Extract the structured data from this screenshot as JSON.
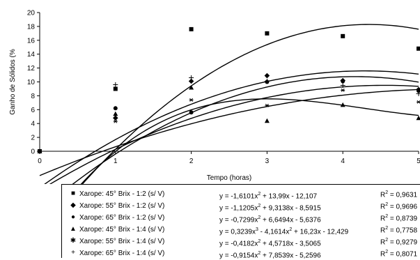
{
  "chart_data": {
    "type": "scatter",
    "xlabel": "Tempo (horas)",
    "ylabel": "Ganho de Sólidos (%",
    "xlim": [
      0,
      5
    ],
    "ylim": [
      0,
      20
    ],
    "x_ticks": [
      "0",
      "1",
      "2",
      "3",
      "4",
      "5"
    ],
    "y_ticks": [
      "0",
      "2",
      "4",
      "6",
      "8",
      "10",
      "12",
      "14",
      "16",
      "18",
      "20"
    ],
    "grid": false,
    "legend_position": "bottom",
    "series": [
      {
        "name": "Xarope: 45° Brix - 1:2  (s/ V)",
        "marker": "square",
        "marker_glyph": "■",
        "x": [
          0,
          1,
          2,
          3,
          4,
          5
        ],
        "values": [
          0,
          9.0,
          17.6,
          17.0,
          16.6,
          14.8
        ],
        "fit_coeffs": [
          -12.107,
          13.99,
          -1.6101
        ],
        "equation_parts": [
          "y = -1,6101x",
          "2",
          " + 13,99x - 12,107"
        ],
        "r2_parts": [
          "R",
          "2",
          " = 0,9631"
        ]
      },
      {
        "name": "Xarope: 55° Brix - 1:2  (s/ V)",
        "marker": "diamond",
        "marker_glyph": "◆",
        "x": [
          0,
          1,
          2,
          3,
          4,
          5
        ],
        "values": [
          0,
          4.8,
          10.1,
          10.9,
          10.2,
          8.9
        ],
        "fit_coeffs": [
          -8.5915,
          9.3138,
          -1.1205
        ],
        "equation_parts": [
          "y = -1,1205x",
          "2",
          " + 9,3138x - 8,5915"
        ],
        "r2_parts": [
          "R",
          "2",
          " = 0,9696"
        ]
      },
      {
        "name": "Xarope: 65° Brix - 1:2  (s/ V)",
        "marker": "circle",
        "marker_glyph": "●",
        "x": [
          0,
          1,
          2,
          3,
          4,
          5
        ],
        "values": [
          0,
          6.2,
          5.6,
          10.0,
          10.1,
          8.7
        ],
        "fit_coeffs": [
          -5.6376,
          6.6494,
          -0.7299
        ],
        "equation_parts": [
          "y = -0,7299x",
          "2",
          " + 6,6494x - 5,6376"
        ],
        "r2_parts": [
          "R",
          "2",
          " = 0,8739"
        ]
      },
      {
        "name": "Xarope: 45° Brix - 1:4  (s/ V)",
        "marker": "triangle",
        "marker_glyph": "▲",
        "x": [
          0,
          1,
          2,
          3,
          4,
          5
        ],
        "values": [
          0,
          5.4,
          9.2,
          4.4,
          6.7,
          4.8
        ],
        "fit_coeffs": [
          -12.429,
          16.23,
          -4.1614,
          0.3239
        ],
        "equation_parts": [
          "y = 0,3239x",
          "3",
          " - 4,1614x",
          "2",
          " + 16,23x - 12,429"
        ],
        "r2_parts": [
          "R",
          "2",
          " = 0,7758"
        ]
      },
      {
        "name": "Xarope: 55° Brix - 1:4  (s/ V)",
        "marker": "star",
        "marker_glyph": "✱",
        "x": [
          0,
          1,
          2,
          3,
          4,
          5
        ],
        "values": [
          0,
          4.3,
          7.4,
          6.6,
          8.8,
          7.1
        ],
        "fit_coeffs": [
          -3.5065,
          4.5718,
          -0.4182
        ],
        "equation_parts": [
          "y = -0,4182x",
          "2",
          " + 4,5718x - 3,5065"
        ],
        "r2_parts": [
          "R",
          "2",
          " = 0,9279"
        ]
      },
      {
        "name": "Xarope: 65° Brix - 1:4  (s/ V)",
        "marker": "plus",
        "marker_glyph": "+",
        "x": [
          0,
          1,
          2,
          3,
          4,
          5
        ],
        "values": [
          0,
          9.6,
          10.6,
          10.1,
          9.5,
          8.3
        ],
        "fit_coeffs": [
          -5.2596,
          7.8539,
          -0.9154
        ],
        "equation_parts": [
          "y = -0,9154x",
          "2",
          " + 7,8539x - 5,2596"
        ],
        "r2_parts": [
          "R",
          "2",
          " = 0,8071"
        ]
      }
    ]
  }
}
